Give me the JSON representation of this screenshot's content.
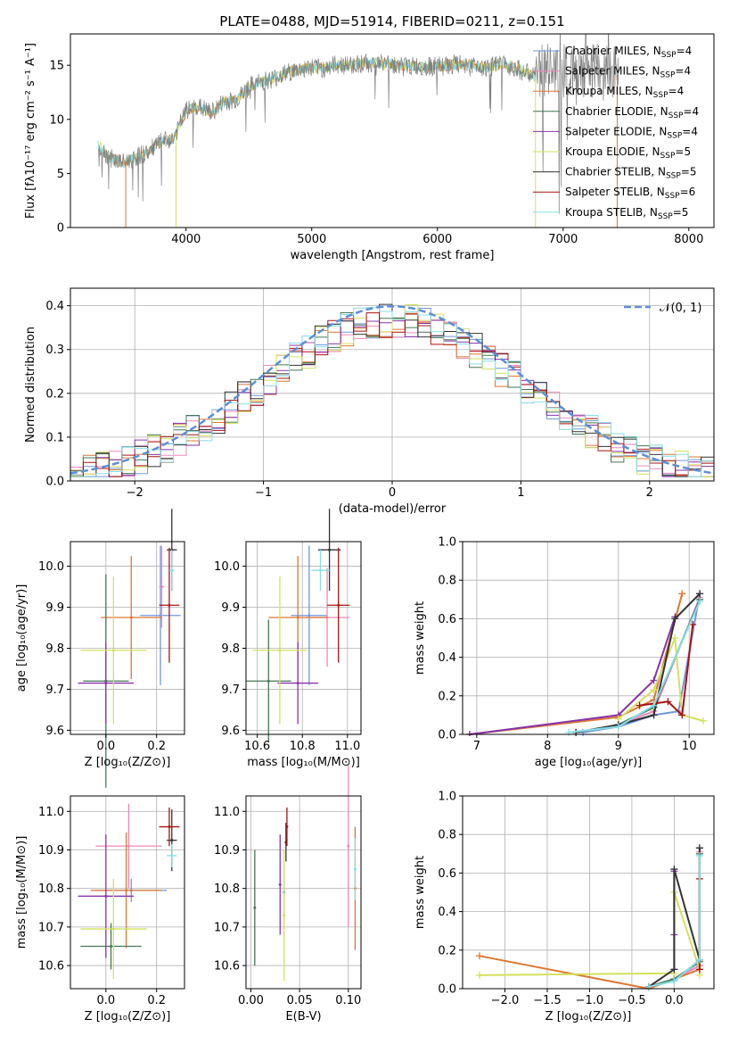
{
  "title": "PLATE=0488, MJD=51914, FIBERID=0211, z=0.151",
  "models": [
    {
      "name": "Chabrier MILES",
      "nssp": "4",
      "color": "#6f98dd"
    },
    {
      "name": "Salpeter MILES",
      "nssp": "4",
      "color": "#ee88bb"
    },
    {
      "name": "Kroupa MILES",
      "nssp": "4",
      "color": "#dd7733"
    },
    {
      "name": "Chabrier ELODIE",
      "nssp": "4",
      "color": "#447755"
    },
    {
      "name": "Salpeter ELODIE",
      "nssp": "4",
      "color": "#8833aa"
    },
    {
      "name": "Kroupa ELODIE",
      "nssp": "5",
      "color": "#d4e05c"
    },
    {
      "name": "Chabrier STELIB",
      "nssp": "5",
      "color": "#333333"
    },
    {
      "name": "Salpeter STELIB",
      "nssp": "6",
      "color": "#aa1111"
    },
    {
      "name": "Kroupa STELIB",
      "nssp": "5",
      "color": "#88dde8"
    }
  ],
  "chart_data": [
    {
      "id": "spectrum",
      "type": "line",
      "xlabel": "wavelength [Angstrom, rest frame]",
      "ylabel": "Flux [fλ10⁻¹⁷ erg cm⁻² s⁻¹ A⁻¹]",
      "xlim": [
        3080,
        8200
      ],
      "ylim": [
        0,
        17.9
      ],
      "xticks": [
        4000,
        5000,
        6000,
        7000,
        8000
      ],
      "yticks": [
        0,
        5,
        10,
        15
      ],
      "data_color": "#808080",
      "continuum": [
        [
          3300,
          7.6
        ],
        [
          3400,
          6.4
        ],
        [
          3500,
          6.0
        ],
        [
          3600,
          6.5
        ],
        [
          3700,
          7.0
        ],
        [
          3800,
          7.9
        ],
        [
          3900,
          8.2
        ],
        [
          4000,
          10.8
        ],
        [
          4100,
          11.2
        ],
        [
          4200,
          10.6
        ],
        [
          4300,
          11.6
        ],
        [
          4400,
          11.8
        ],
        [
          4500,
          13.0
        ],
        [
          4600,
          13.5
        ],
        [
          4700,
          13.8
        ],
        [
          4800,
          14.3
        ],
        [
          4900,
          14.6
        ],
        [
          5000,
          14.8
        ],
        [
          5100,
          14.7
        ],
        [
          5200,
          15.1
        ],
        [
          5300,
          15.0
        ],
        [
          5400,
          15.2
        ],
        [
          5500,
          15.2
        ],
        [
          5600,
          15.2
        ],
        [
          5700,
          15.0
        ],
        [
          5800,
          14.9
        ],
        [
          5900,
          14.9
        ],
        [
          6000,
          14.9
        ],
        [
          6100,
          15.0
        ],
        [
          6200,
          15.1
        ],
        [
          6300,
          15.0
        ],
        [
          6400,
          14.8
        ],
        [
          6500,
          15.1
        ],
        [
          6600,
          14.9
        ],
        [
          6700,
          14.3
        ],
        [
          6780,
          14.0
        ]
      ],
      "cutoff_drops": [
        3520,
        3920,
        6780,
        7430
      ],
      "series_note": ""
    },
    {
      "id": "residuals",
      "type": "line",
      "xlabel": "(data-model)/error",
      "ylabel": "Normed distribution",
      "xlim": [
        -2.5,
        2.5
      ],
      "ylim": [
        0,
        0.44
      ],
      "xticks": [
        -2,
        -1,
        0,
        1,
        2
      ],
      "yticks": [
        0.0,
        0.1,
        0.2,
        0.3,
        0.4
      ],
      "legend": "𝒩(0, 1)",
      "legend_color": "#5b8fd6",
      "bin_width": 0.1
    },
    {
      "id": "age-vs-Z",
      "type": "scatter",
      "xlabel": "Z [log₁₀(Z/Z⊙)]",
      "ylabel": "age  [log₁₀(age/yr)]",
      "xlim": [
        -0.14,
        0.31
      ],
      "ylim": [
        9.59,
        10.06
      ],
      "xticks": [
        0.0,
        0.2
      ],
      "yticks": [
        9.6,
        9.7,
        9.8,
        9.9,
        10.0
      ],
      "points": [
        {
          "model": 0,
          "x": 0.215,
          "y": 9.88,
          "xerr": 0.08,
          "yerr": 0.17
        },
        {
          "model": 1,
          "x": 0.22,
          "y": 9.95,
          "xerr": 0.01,
          "yerr": 0.1
        },
        {
          "model": 2,
          "x": 0.1,
          "y": 9.875,
          "xerr": 0.12,
          "yerr": 0.15
        },
        {
          "model": 3,
          "x": 0.0,
          "y": 9.72,
          "xerr": 0.09,
          "yerr": 0.26
        },
        {
          "model": 4,
          "x": 0.0,
          "y": 9.715,
          "xerr": 0.11,
          "yerr": 0.1
        },
        {
          "model": 5,
          "x": 0.03,
          "y": 9.795,
          "xerr": 0.13,
          "yerr": 0.18
        },
        {
          "model": 6,
          "x": 0.26,
          "y": 10.04,
          "xerr": 0.02,
          "yerr": 0.1
        },
        {
          "model": 7,
          "x": 0.25,
          "y": 9.905,
          "xerr": 0.04,
          "yerr": 0.14
        },
        {
          "model": 8,
          "x": 0.26,
          "y": 9.99,
          "xerr": 0.01,
          "yerr": 0.05
        }
      ]
    },
    {
      "id": "age-vs-mass",
      "type": "scatter",
      "xlabel": "mass [log₁₀(M/M⊙)]",
      "ylabel": "",
      "xlim": [
        10.55,
        11.06
      ],
      "ylim": [
        9.59,
        10.06
      ],
      "xticks": [
        10.6,
        10.8,
        11.0
      ],
      "yticks": [
        9.6,
        9.7,
        9.8,
        9.9,
        10.0
      ],
      "points": [
        {
          "model": 0,
          "x": 10.83,
          "y": 9.88,
          "xerr": 0.08,
          "yerr": 0.17
        },
        {
          "model": 1,
          "x": 10.91,
          "y": 9.875,
          "xerr": 0.1,
          "yerr": 0.12
        },
        {
          "model": 2,
          "x": 10.78,
          "y": 9.875,
          "xerr": 0.13,
          "yerr": 0.15
        },
        {
          "model": 3,
          "x": 10.65,
          "y": 9.72,
          "xerr": 0.1,
          "yerr": 0.15
        },
        {
          "model": 4,
          "x": 10.78,
          "y": 9.715,
          "xerr": 0.09,
          "yerr": 0.1
        },
        {
          "model": 5,
          "x": 10.7,
          "y": 9.795,
          "xerr": 0.12,
          "yerr": 0.18
        },
        {
          "model": 6,
          "x": 10.92,
          "y": 10.04,
          "xerr": 0.05,
          "yerr": 0.1
        },
        {
          "model": 7,
          "x": 10.96,
          "y": 9.905,
          "xerr": 0.05,
          "yerr": 0.14
        },
        {
          "model": 8,
          "x": 10.88,
          "y": 9.99,
          "xerr": 0.04,
          "yerr": 0.05
        }
      ]
    },
    {
      "id": "weight-vs-age",
      "type": "line",
      "xlabel": "age  [log₁₀(age/yr)]",
      "ylabel": "mass weight",
      "xlim": [
        6.8,
        10.35
      ],
      "ylim": [
        0,
        1.0
      ],
      "xticks": [
        7,
        8,
        9,
        10
      ],
      "yticks": [
        0.0,
        0.2,
        0.4,
        0.6,
        0.8,
        1.0
      ],
      "series": [
        {
          "model": 0,
          "x": [
            8.5,
            9.0,
            9.5,
            9.85,
            10.15
          ],
          "y": [
            0.01,
            0.04,
            0.1,
            0.12,
            0.73
          ]
        },
        {
          "model": 1,
          "x": [
            8.4,
            9.0,
            9.5,
            10.15
          ],
          "y": [
            0.01,
            0.05,
            0.12,
            0.71
          ]
        },
        {
          "model": 2,
          "x": [
            6.9,
            9.0,
            9.5,
            9.9
          ],
          "y": [
            0.0,
            0.09,
            0.18,
            0.73
          ]
        },
        {
          "model": 3,
          "x": [
            8.4,
            9.0,
            9.5,
            10.15
          ],
          "y": [
            0.01,
            0.05,
            0.14,
            0.7
          ]
        },
        {
          "model": 4,
          "x": [
            6.9,
            9.0,
            9.5,
            9.8
          ],
          "y": [
            0.0,
            0.1,
            0.28,
            0.61
          ]
        },
        {
          "model": 5,
          "x": [
            9.0,
            9.5,
            9.8,
            9.9,
            10.2
          ],
          "y": [
            0.08,
            0.23,
            0.5,
            0.1,
            0.07
          ]
        },
        {
          "model": 6,
          "x": [
            8.4,
            9.0,
            9.5,
            9.8,
            10.15
          ],
          "y": [
            0.01,
            0.05,
            0.1,
            0.6,
            0.73
          ]
        },
        {
          "model": 7,
          "x": [
            9.3,
            9.7,
            9.9,
            10.05
          ],
          "y": [
            0.15,
            0.17,
            0.1,
            0.57
          ]
        },
        {
          "model": 8,
          "x": [
            8.3,
            9.0,
            9.5,
            10.15
          ],
          "y": [
            0.01,
            0.04,
            0.15,
            0.69
          ]
        }
      ]
    },
    {
      "id": "mass-vs-Z",
      "type": "scatter",
      "xlabel": "Z [log₁₀(Z/Z⊙)]",
      "ylabel": "mass [log₁₀(M/M⊙)]",
      "xlim": [
        -0.14,
        0.31
      ],
      "ylim": [
        10.54,
        11.04
      ],
      "xticks": [
        0.0,
        0.2
      ],
      "yticks": [
        10.6,
        10.7,
        10.8,
        10.9,
        11.0
      ],
      "points": [
        {
          "model": 0,
          "x": 0.1,
          "y": 10.795,
          "xerr": 0.14,
          "yerr": 0.03
        },
        {
          "model": 1,
          "x": 0.09,
          "y": 10.91,
          "xerr": 0.13,
          "yerr": 0.11
        },
        {
          "model": 2,
          "x": 0.08,
          "y": 10.795,
          "xerr": 0.14,
          "yerr": 0.15
        },
        {
          "model": 3,
          "x": 0.02,
          "y": 10.65,
          "xerr": 0.12,
          "yerr": 0.06
        },
        {
          "model": 4,
          "x": 0.0,
          "y": 10.78,
          "xerr": 0.11,
          "yerr": 0.16
        },
        {
          "model": 5,
          "x": 0.03,
          "y": 10.695,
          "xerr": 0.13,
          "yerr": 0.13
        },
        {
          "model": 6,
          "x": 0.26,
          "y": 10.925,
          "xerr": 0.02,
          "yerr": 0.08
        },
        {
          "model": 7,
          "x": 0.25,
          "y": 10.96,
          "xerr": 0.04,
          "yerr": 0.05
        },
        {
          "model": 8,
          "x": 0.26,
          "y": 10.885,
          "xerr": 0.02,
          "yerr": 0.03
        }
      ]
    },
    {
      "id": "mass-vs-EBV",
      "type": "scatter",
      "xlabel": "E(B-V)",
      "ylabel": "",
      "xlim": [
        -0.005,
        0.113
      ],
      "ylim": [
        10.54,
        11.04
      ],
      "xticks": [
        0.0,
        0.05,
        0.1
      ],
      "yticks": [
        10.6,
        10.7,
        10.8,
        10.9,
        11.0
      ],
      "points": [
        {
          "model": 0,
          "x": 0.034,
          "y": 10.79,
          "yerr": 0.07
        },
        {
          "model": 1,
          "x": 0.1,
          "y": 10.91,
          "yerr": 0.21
        },
        {
          "model": 2,
          "x": 0.107,
          "y": 10.8,
          "yerr": 0.16
        },
        {
          "model": 3,
          "x": 0.004,
          "y": 10.75,
          "yerr": 0.15
        },
        {
          "model": 4,
          "x": 0.03,
          "y": 10.81,
          "yerr": 0.13
        },
        {
          "model": 5,
          "x": 0.034,
          "y": 10.73,
          "yerr": 0.17
        },
        {
          "model": 6,
          "x": 0.036,
          "y": 10.92,
          "yerr": 0.05
        },
        {
          "model": 7,
          "x": 0.037,
          "y": 10.96,
          "yerr": 0.05
        },
        {
          "model": 8,
          "x": 0.107,
          "y": 10.85,
          "yerr": 0.08
        }
      ]
    },
    {
      "id": "weight-vs-Z",
      "type": "line",
      "xlabel": "Z [log₁₀(Z/Z⊙)]",
      "ylabel": "mass weight",
      "xlim": [
        -2.5,
        0.47
      ],
      "ylim": [
        0,
        1.0
      ],
      "xticks": [
        -2.0,
        -1.5,
        -1.0,
        -0.5,
        0.0
      ],
      "yticks": [
        0.0,
        0.2,
        0.4,
        0.6,
        0.8,
        1.0
      ],
      "series": [
        {
          "model": 0,
          "x": [
            -0.3,
            0.0,
            0.3,
            0.3
          ],
          "y": [
            0.01,
            0.04,
            0.15,
            0.73
          ]
        },
        {
          "model": 1,
          "x": [
            -0.3,
            0.0,
            0.3,
            0.3
          ],
          "y": [
            0.01,
            0.05,
            0.12,
            0.71
          ]
        },
        {
          "model": 2,
          "x": [
            -2.3,
            -0.3,
            0.0,
            0.3,
            0.3
          ],
          "y": [
            0.17,
            0.0,
            0.05,
            0.1,
            0.73
          ]
        },
        {
          "model": 3,
          "x": [
            -0.3,
            0.0,
            0.3,
            0.3
          ],
          "y": [
            0.01,
            0.05,
            0.14,
            0.7
          ]
        },
        {
          "model": 4,
          "x": [
            0.0,
            0.0,
            0.0
          ],
          "y": [
            0.1,
            0.28,
            0.61
          ]
        },
        {
          "model": 5,
          "x": [
            -2.3,
            0.0,
            0.0,
            0.3,
            0.3
          ],
          "y": [
            0.07,
            0.08,
            0.5,
            0.1,
            0.07
          ]
        },
        {
          "model": 6,
          "x": [
            -0.3,
            0.0,
            0.0,
            0.3,
            0.3
          ],
          "y": [
            0.01,
            0.1,
            0.62,
            0.15,
            0.73
          ]
        },
        {
          "model": 7,
          "x": [
            0.3,
            0.3,
            0.3
          ],
          "y": [
            0.1,
            0.15,
            0.57
          ]
        },
        {
          "model": 8,
          "x": [
            -0.3,
            0.0,
            0.3,
            0.3
          ],
          "y": [
            0.01,
            0.04,
            0.15,
            0.69
          ]
        }
      ]
    }
  ]
}
